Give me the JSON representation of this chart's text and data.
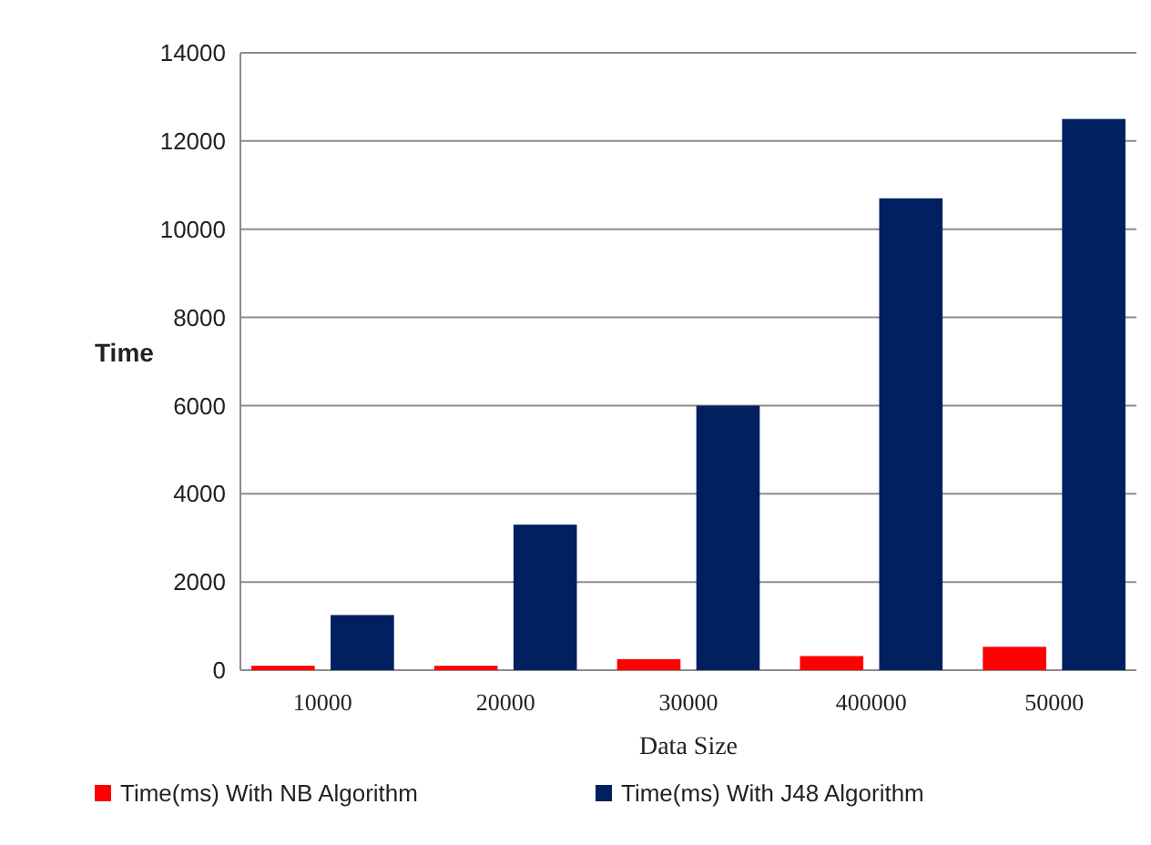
{
  "chart_data": {
    "type": "bar",
    "categories": [
      "10000",
      "20000",
      "30000",
      "400000",
      "50000"
    ],
    "series": [
      {
        "name": "Time(ms) With NB Algorithm",
        "color": "#ff0000",
        "values": [
          100,
          100,
          250,
          320,
          530
        ]
      },
      {
        "name": "Time(ms) With J48 Algorithm",
        "color": "#002060",
        "values": [
          1250,
          3300,
          6000,
          10700,
          12500
        ]
      }
    ],
    "xlabel": "Data Size",
    "ylabel": "Time",
    "ylim": [
      0,
      14000
    ],
    "yticks": [
      0,
      2000,
      4000,
      6000,
      8000,
      10000,
      12000,
      14000
    ],
    "grid": "y",
    "legend": "bottom"
  }
}
